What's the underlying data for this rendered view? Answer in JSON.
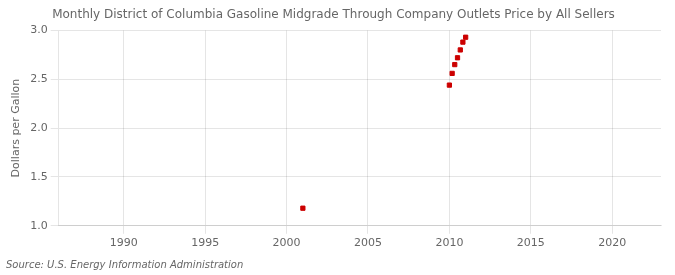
{
  "chart_data": {
    "type": "scatter",
    "title": "Monthly District of Columbia Gasoline Midgrade Through Company Outlets Price by All Sellers",
    "y_label": "Dollars per Gallon",
    "annotations": [
      "Source: U.S. Energy Information Administration"
    ],
    "x": [
      2001.0,
      2010.0,
      2010.17,
      2010.33,
      2010.5,
      2010.67,
      2010.83,
      2011.0
    ],
    "values": [
      1.18,
      2.44,
      2.56,
      2.65,
      2.72,
      2.8,
      2.88,
      2.93
    ],
    "color": "#cc0000",
    "marker": "square",
    "xlim": [
      1986,
      2023
    ],
    "xticks": [
      1990,
      1995,
      2000,
      2005,
      2010,
      2015,
      2020
    ],
    "ylim": [
      1.0,
      3.0
    ],
    "yticks": [
      {
        "value": 1.0,
        "label": "1.0"
      },
      1.5,
      {
        "value": 2.0,
        "label": "2.0"
      },
      2.5,
      {
        "value": 3.0,
        "label": "3.0"
      }
    ],
    "grid": true
  }
}
